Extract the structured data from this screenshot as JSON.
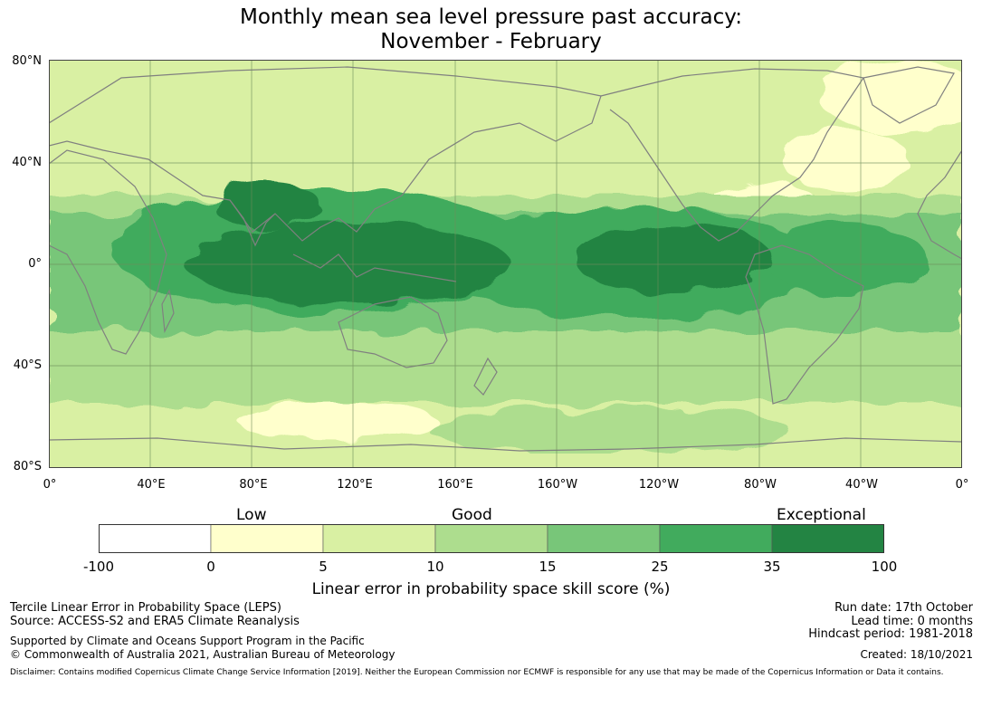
{
  "title": {
    "line1": "Monthly mean sea level pressure past accuracy:",
    "line2": "November - February"
  },
  "map": {
    "lat_labels": [
      "80°N",
      "40°N",
      "0°",
      "40°S",
      "80°S"
    ],
    "lon_labels": [
      "0°",
      "40°E",
      "80°E",
      "120°E",
      "160°E",
      "160°W",
      "120°W",
      "80°W",
      "40°W",
      "0°"
    ],
    "gridline_color": "#6e8c5a",
    "coastline_color": "#808080"
  },
  "legend": {
    "categories": [
      "Low",
      "Good",
      "Exceptional"
    ],
    "ticks": [
      "-100",
      "0",
      "5",
      "10",
      "15",
      "25",
      "35",
      "100"
    ],
    "colors": [
      "#ffffff",
      "#ffffcc",
      "#d9f0a3",
      "#addd8e",
      "#78c679",
      "#41ab5d",
      "#238443"
    ],
    "label": "Linear error in probability space skill score (%)"
  },
  "footer": {
    "left1": "Tercile Linear Error in Probability Space (LEPS)",
    "left2": "Source: ACCESS-S2 and ERA5 Climate Reanalysis",
    "left3": "Supported by Climate and Oceans Support Program in the Pacific",
    "left4": "© Commonwealth of Australia 2021, Australian Bureau of Meteorology",
    "right1": "Run date: 17th October",
    "right2": "Lead time: 0 months",
    "right3": "Hindcast period: 1981-2018",
    "right4": "Created: 18/10/2021",
    "disclaimer": "Disclaimer: Contains modified Copernicus Climate Change Service Information [2019]. Neither the European Commission nor ECMWF is responsible for any use that may be made of the Copernicus Information or Data it contains."
  }
}
